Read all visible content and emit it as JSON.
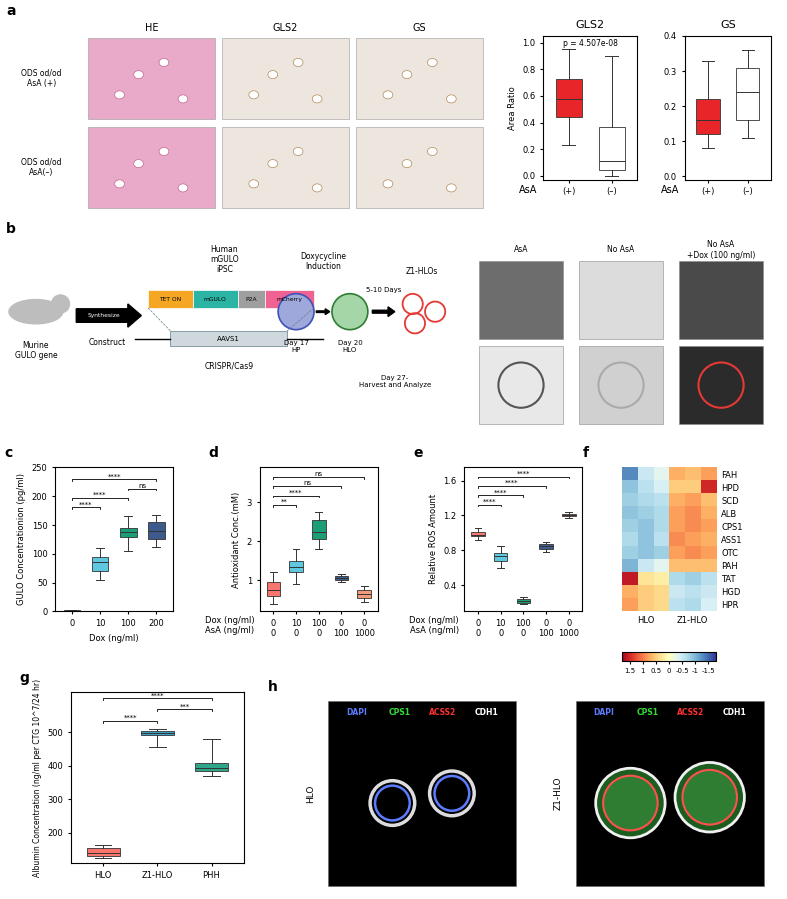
{
  "chart_data": [
    {
      "type": "box",
      "title": "GLS2",
      "ylabel": "Area Ratio",
      "x_title": "AsA",
      "categories": [
        "(+)",
        "(–)"
      ],
      "colors": [
        "#e8262a",
        "#ffffff"
      ],
      "stats": [
        {
          "low": 0.23,
          "q1": 0.44,
          "median": 0.58,
          "q3": 0.73,
          "high": 0.95
        },
        {
          "low": 0.0,
          "q1": 0.04,
          "median": 0.11,
          "q3": 0.37,
          "high": 0.9
        }
      ],
      "annotation": "p = 4.507e-08",
      "ylim": [
        -0.03,
        1.05
      ],
      "yticks": [
        {
          "value": 0,
          "label": "0.0"
        },
        0.2,
        0.4,
        0.6,
        0.8,
        {
          "value": 1,
          "label": "1.0"
        }
      ]
    },
    {
      "type": "box",
      "title": "GS",
      "x_title": "AsA",
      "categories": [
        "(+)",
        "(–)"
      ],
      "colors": [
        "#e8262a",
        "#ffffff"
      ],
      "stats": [
        {
          "low": 0.08,
          "q1": 0.12,
          "median": 0.16,
          "q3": 0.22,
          "high": 0.33
        },
        {
          "low": 0.11,
          "q1": 0.16,
          "median": 0.24,
          "q3": 0.31,
          "high": 0.36
        }
      ],
      "ylim": [
        -0.01,
        0.4
      ],
      "yticks": [
        {
          "value": 0,
          "label": "0.0"
        },
        0.1,
        0.2,
        0.3,
        0.4
      ]
    },
    {
      "type": "box",
      "panel": "c",
      "ylabel": "GULO Concentrationion (pg/ml)",
      "xlabel": "Dox (ng/ml)",
      "categories": [
        "0",
        "10",
        "100",
        "200"
      ],
      "colors": [
        "#f8766d",
        "#5ec8e0",
        "#1b9e77",
        "#3c5a8c"
      ],
      "stats": [
        {
          "low": 0,
          "q1": 0.5,
          "median": 1,
          "q3": 1.5,
          "high": 2
        },
        {
          "low": 55,
          "q1": 70,
          "median": 85,
          "q3": 95,
          "high": 110
        },
        {
          "low": 105,
          "q1": 130,
          "median": 138,
          "q3": 145,
          "high": 165
        },
        {
          "low": 112,
          "q1": 125,
          "median": 140,
          "q3": 155,
          "high": 168
        }
      ],
      "comparisons": [
        {
          "pair": [
            0,
            1
          ],
          "label": "****"
        },
        {
          "pair": [
            0,
            2
          ],
          "label": "****"
        },
        {
          "pair": [
            2,
            3
          ],
          "label": "ns"
        },
        {
          "pair": [
            0,
            3
          ],
          "label": "****"
        }
      ],
      "ylim": [
        0,
        250
      ],
      "yticks": [
        0,
        50,
        100,
        150,
        200,
        250
      ]
    },
    {
      "type": "box",
      "panel": "d",
      "ylabel": "Antioxidant Conc.(mM)",
      "x_rows": [
        {
          "label": "Dox (ng/ml)",
          "values": [
            "0",
            "10",
            "100",
            "0",
            "0"
          ]
        },
        {
          "label": "AsA (ng/ml)",
          "values": [
            "0",
            "0",
            "0",
            "100",
            "1000"
          ]
        }
      ],
      "colors": [
        "#f8766d",
        "#5ec8e0",
        "#1b9e77",
        "#3c5a8c",
        "#f29a7a"
      ],
      "stats": [
        {
          "low": 0.4,
          "q1": 0.6,
          "median": 0.75,
          "q3": 0.95,
          "high": 1.2
        },
        {
          "low": 0.9,
          "q1": 1.2,
          "median": 1.35,
          "q3": 1.5,
          "high": 1.8
        },
        {
          "low": 1.8,
          "q1": 2.05,
          "median": 2.25,
          "q3": 2.55,
          "high": 2.75
        },
        {
          "low": 0.95,
          "q1": 1.0,
          "median": 1.05,
          "q3": 1.1,
          "high": 1.15
        },
        {
          "low": 0.45,
          "q1": 0.55,
          "median": 0.65,
          "q3": 0.75,
          "high": 0.85
        }
      ],
      "comparisons": [
        {
          "pair": [
            0,
            1
          ],
          "label": "**"
        },
        {
          "pair": [
            0,
            2
          ],
          "label": "****"
        },
        {
          "pair": [
            0,
            3
          ],
          "label": "ns"
        },
        {
          "pair": [
            0,
            4
          ],
          "label": "ns"
        }
      ],
      "ylim": [
        0.2,
        3.9
      ],
      "yticks": [
        1,
        2,
        3
      ]
    },
    {
      "type": "box",
      "panel": "e",
      "ylabel": "Relative ROS Amount",
      "x_rows": [
        {
          "label": "Dox (ng/ml)",
          "values": [
            "0",
            "10",
            "100",
            "0",
            "0"
          ]
        },
        {
          "label": "AsA (ng/ml)",
          "values": [
            "0",
            "0",
            "0",
            "100",
            "1000"
          ]
        }
      ],
      "colors": [
        "#f8766d",
        "#5ec8e0",
        "#1b9e77",
        "#3c5a8c",
        "#f29a7a"
      ],
      "stats": [
        {
          "low": 0.92,
          "q1": 0.96,
          "median": 0.98,
          "q3": 1.01,
          "high": 1.06
        },
        {
          "low": 0.6,
          "q1": 0.68,
          "median": 0.73,
          "q3": 0.77,
          "high": 0.85
        },
        {
          "low": 0.18,
          "q1": 0.2,
          "median": 0.22,
          "q3": 0.24,
          "high": 0.26
        },
        {
          "low": 0.78,
          "q1": 0.82,
          "median": 0.85,
          "q3": 0.87,
          "high": 0.9
        },
        {
          "low": 1.17,
          "q1": 1.19,
          "median": 1.2,
          "q3": 1.22,
          "high": 1.24
        }
      ],
      "comparisons": [
        {
          "pair": [
            0,
            1
          ],
          "label": "****"
        },
        {
          "pair": [
            0,
            2
          ],
          "label": "****"
        },
        {
          "pair": [
            0,
            3
          ],
          "label": "****"
        },
        {
          "pair": [
            0,
            4
          ],
          "label": "****"
        }
      ],
      "ylim": [
        0.1,
        1.75
      ],
      "yticks": [
        0.4,
        0.8,
        1.2,
        1.6
      ]
    },
    {
      "type": "heatmap",
      "panel": "f",
      "rows": [
        "FAH",
        "HPD",
        "SCD",
        "ALB",
        "CPS1",
        "ASS1",
        "OTC",
        "PAH",
        "TAT",
        "HGD",
        "HPR"
      ],
      "groups": [
        {
          "label": "HLO",
          "n": 3
        },
        {
          "label": "Z1-HLO",
          "n": 3
        }
      ],
      "cells": [
        [
          -1.3,
          -0.5,
          -0.3,
          0.7,
          0.6,
          0.8
        ],
        [
          -0.9,
          -0.6,
          -0.4,
          0.5,
          0.5,
          1.5
        ],
        [
          -0.8,
          -0.7,
          -0.6,
          0.7,
          0.8,
          0.6
        ],
        [
          -0.9,
          -0.8,
          -0.7,
          0.8,
          0.9,
          0.7
        ],
        [
          -0.8,
          -0.9,
          -0.7,
          0.8,
          0.9,
          0.8
        ],
        [
          -0.7,
          -0.9,
          -0.6,
          0.9,
          0.8,
          0.7
        ],
        [
          -0.8,
          -0.9,
          -0.8,
          0.8,
          0.9,
          0.8
        ],
        [
          -1.0,
          -0.5,
          -0.3,
          0.6,
          0.6,
          0.6
        ],
        [
          1.6,
          0.3,
          0.2,
          -0.7,
          -0.8,
          -0.6
        ],
        [
          0.7,
          0.5,
          0.4,
          -0.5,
          -0.6,
          -0.5
        ],
        [
          0.8,
          0.5,
          0.4,
          -0.6,
          -0.7,
          -0.4
        ]
      ],
      "colorbar": {
        "range": [
          -1.8,
          1.8
        ],
        "ticks": [
          1.5,
          1,
          0.5,
          0,
          -0.5,
          -1,
          -1.5
        ]
      }
    },
    {
      "type": "box",
      "panel": "g",
      "ylabel": "Albumin Concentration (ng/ml per CTG 10^7/24 hr)",
      "categories": [
        "HLO",
        "Z1-HLO",
        "PHH"
      ],
      "colors": [
        "#f8766d",
        "#3aa0c8",
        "#2fa58a"
      ],
      "stats": [
        {
          "low": 125,
          "q1": 132,
          "median": 140,
          "q3": 155,
          "high": 165
        },
        {
          "low": 455,
          "q1": 492,
          "median": 498,
          "q3": 505,
          "high": 510
        },
        {
          "low": 370,
          "q1": 385,
          "median": 395,
          "q3": 410,
          "high": 480
        }
      ],
      "comparisons": [
        {
          "pair": [
            0,
            1
          ],
          "label": "****"
        },
        {
          "pair": [
            1,
            2
          ],
          "label": "***"
        },
        {
          "pair": [
            0,
            2
          ],
          "label": "****"
        }
      ],
      "ylim": [
        110,
        620
      ],
      "yticks": [
        200,
        300,
        400,
        500
      ]
    }
  ],
  "tissue_images": {
    "panel": "a",
    "columns": [
      "HE",
      "GLS2",
      "GS"
    ],
    "rows": [
      "ODS od/od\nAsA (+)",
      "ODS od/od\nAsA(–)"
    ]
  },
  "diagram": {
    "panel": "b",
    "texts": {
      "source": "Murine\nGULO gene",
      "synthesize": "Synthesize",
      "construct": "Construct",
      "tet": "TET ON",
      "gene": "mGULO",
      "p2a": "P2A",
      "reporter": "mCherry",
      "locus": "AAVS1",
      "editing": "CRISPR/Cas9",
      "cell": "Human\nmGULO\niPSC",
      "induction": "Doxycycline\nInduction",
      "day17": "Day 17\nHP",
      "day20": "Day 20\nHLO",
      "duration": "5-10 Days",
      "product": "Z1-HLOs",
      "harvest": "Day 27-\nHarvest and Analyze"
    }
  },
  "culture_images": {
    "columns": [
      "AsA",
      "No AsA",
      "No AsA\n+Dox (100 ng/ml)"
    ]
  },
  "fluorescence_images": {
    "panel": "h",
    "channels": [
      "DAPI",
      "CPS1",
      "ACSS2",
      "CDH1"
    ],
    "samples": [
      "HLO",
      "Z1-HLO"
    ]
  }
}
